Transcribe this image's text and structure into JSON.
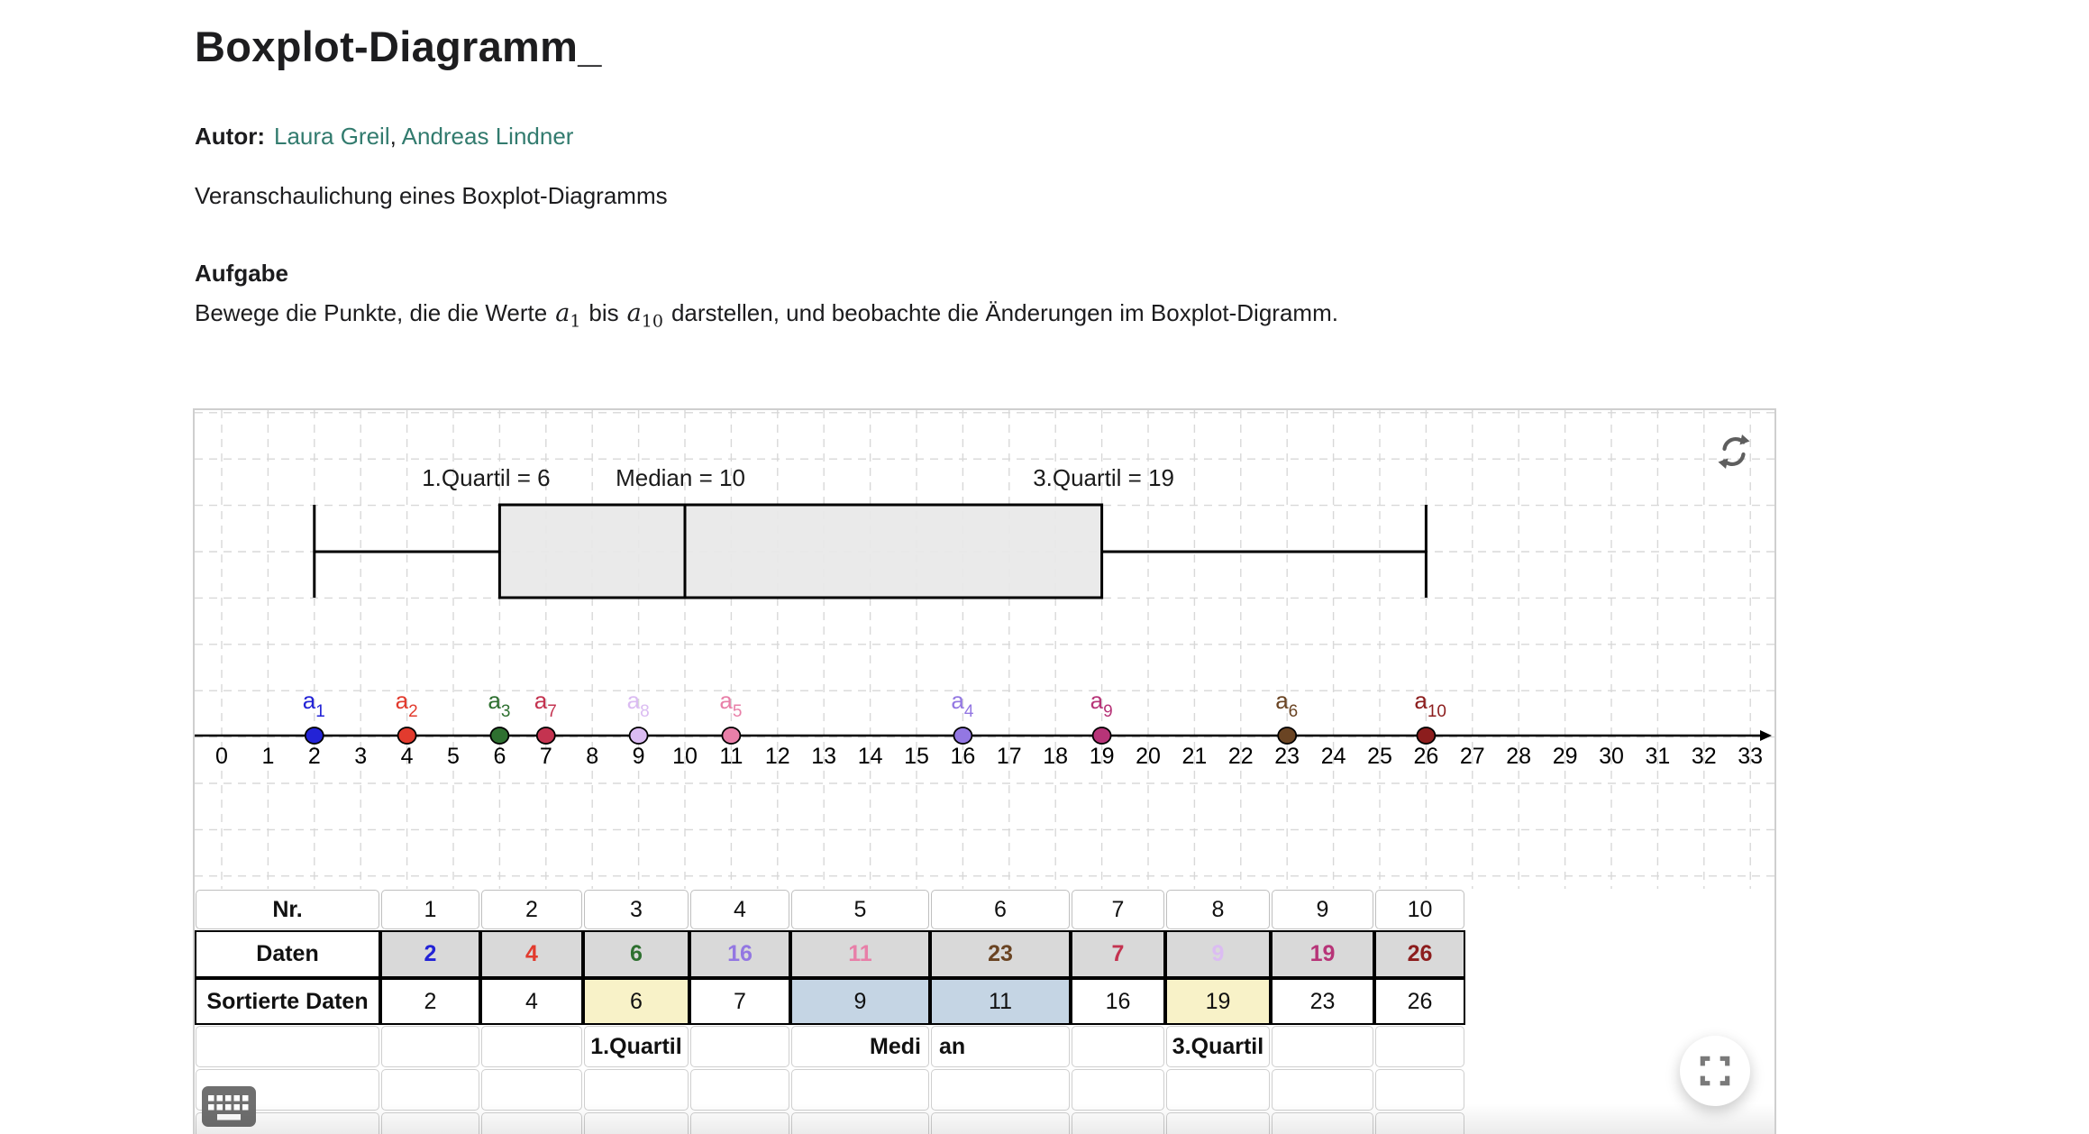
{
  "page": {
    "title": "Boxplot-Diagramm_",
    "author_label": "Autor:",
    "authors": [
      "Laura Greil",
      "Andreas Lindner"
    ],
    "authors_separator": ",",
    "description": "Veranschaulichung eines Boxplot-Diagramms",
    "task": {
      "heading": "Aufgabe",
      "part1": "Bewege die Punkte, die die Werte",
      "var1": "a",
      "var1_sub": "1",
      "part2": "bis",
      "var2": "a",
      "var2_sub": "10",
      "part3": "darstellen, und beobachte die Änderungen im Boxplot-Digramm."
    }
  },
  "colors": {
    "link": "#327b6e",
    "grid": "#d8d8d8",
    "axis": "#000000",
    "box_fill": "#e8e8e8",
    "daten_bg": "#d9d9d9",
    "highlight_yellow": "#f8f2c8",
    "highlight_blue": "#c5d5e4"
  },
  "chart_data": {
    "type": "boxplot",
    "stat_labels": [
      "1.Quartil = 6",
      "Median = 10",
      "3.Quartil = 19"
    ],
    "stats": {
      "min": 2,
      "q1": 6,
      "median": 10,
      "q3": 19,
      "max": 26
    },
    "axis": {
      "min": 0,
      "max": 33,
      "tick_step": 1
    },
    "grid": true,
    "points": [
      {
        "label": "a",
        "sub": "1",
        "value": 2,
        "color": "#2323d6"
      },
      {
        "label": "a",
        "sub": "2",
        "value": 4,
        "color": "#e23b2e"
      },
      {
        "label": "a",
        "sub": "3",
        "value": 6,
        "color": "#2e7030"
      },
      {
        "label": "a",
        "sub": "7",
        "value": 7,
        "color": "#c43350"
      },
      {
        "label": "a",
        "sub": "8",
        "value": 9,
        "color": "#dbbcf2"
      },
      {
        "label": "a",
        "sub": "5",
        "value": 11,
        "color": "#e87fa8"
      },
      {
        "label": "a",
        "sub": "4",
        "value": 16,
        "color": "#9377e2"
      },
      {
        "label": "a",
        "sub": "9",
        "value": 19,
        "color": "#b73478"
      },
      {
        "label": "a",
        "sub": "6",
        "value": 23,
        "color": "#6a4423"
      },
      {
        "label": "a",
        "sub": "10",
        "value": 26,
        "color": "#8c1d1d"
      }
    ]
  },
  "table": {
    "header_label": "Nr.",
    "header_values": [
      "1",
      "2",
      "3",
      "4",
      "5",
      "6",
      "7",
      "8",
      "9",
      "10"
    ],
    "daten_label": "Daten",
    "daten_values": [
      "2",
      "4",
      "6",
      "16",
      "11",
      "23",
      "7",
      "9",
      "19",
      "26"
    ],
    "daten_colors": [
      "#2323d6",
      "#e23b2e",
      "#2e7030",
      "#9377e2",
      "#e87fa8",
      "#6a4423",
      "#c43350",
      "#dbbcf2",
      "#b73478",
      "#8c1d1d"
    ],
    "sorted_label": "Sortierte Daten",
    "sorted_values": [
      "2",
      "4",
      "6",
      "7",
      "9",
      "11",
      "16",
      "19",
      "23",
      "26"
    ],
    "sorted_highlights": {
      "3": "#f8f2c8",
      "5": "#c5d5e4",
      "6": "#c5d5e4",
      "8": "#f8f2c8"
    },
    "annotations": [
      {
        "col": 3,
        "text": "1.Quartil",
        "align": "center"
      },
      {
        "col": 5,
        "text": "Medi",
        "align": "right"
      },
      {
        "col": 6,
        "text": "an",
        "align": "left"
      },
      {
        "col": 8,
        "text": "3.Quartil",
        "align": "center"
      }
    ]
  },
  "icons": {
    "refresh": "reset-refresh",
    "keyboard": "virtual-keyboard",
    "fullscreen": "enter-fullscreen"
  }
}
